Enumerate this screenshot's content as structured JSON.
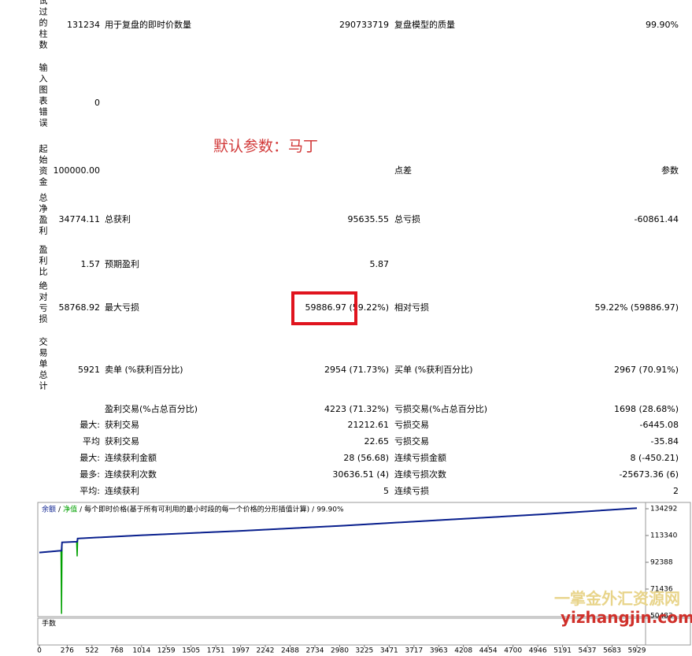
{
  "report": {
    "rows": [
      {
        "group": "测试过的柱数",
        "value": "131234",
        "label2": "用于复盘的即时价数量",
        "value2": "290733719",
        "label3": "复盘模型的质量",
        "value3": "99.90%"
      },
      {
        "group": "输入图表错误",
        "value": "0"
      },
      {
        "group": "起始资金",
        "value": "100000.00",
        "label3": "点差",
        "value3": "参数"
      },
      {
        "group": "总净盈利",
        "value": "34774.11",
        "label2": "总获利",
        "value2": "95635.55",
        "label3": "总亏损",
        "value3": "-60861.44"
      },
      {
        "group": "盈利比",
        "value": "1.57",
        "label2": "预期盈利",
        "value2": "5.87"
      },
      {
        "group": "绝对亏损",
        "value": "58768.92",
        "label2": "最大亏损",
        "value2": "59886.97 (59.22%)",
        "label3": "相对亏损",
        "value3": "59.22% (59886.97)"
      },
      {
        "group": "交易单总计",
        "value": "5921",
        "label2": "卖单 (%获利百分比)",
        "value2": "2954 (71.73%)",
        "label3": "买单 (%获利百分比)",
        "value3": "2967 (70.91%)"
      },
      {
        "label2": "盈利交易(%占总百分比)",
        "value2": "4223 (71.32%)",
        "label3": "亏损交易(%占总百分比)",
        "value3": "1698 (28.68%)"
      },
      {
        "value": "最大:",
        "label2": "获利交易",
        "value2": "21212.61",
        "label3": "亏损交易",
        "value3": "-6445.08"
      },
      {
        "value": "平均",
        "label2": "获利交易",
        "value2": "22.65",
        "label3": "亏损交易",
        "value3": "-35.84"
      },
      {
        "value": "最大:",
        "label2": "连续获利金额",
        "value2": "28 (56.68)",
        "label3": "连续亏损金额",
        "value3": "8 (-450.21)"
      },
      {
        "value": "最多:",
        "label2": "连续获利次数",
        "value2": "30636.51 (4)",
        "label3": "连续亏损次数",
        "value3": "-25673.36 (6)"
      },
      {
        "value": "平均:",
        "label2": "连续获利",
        "value2": "5",
        "label3": "连续亏损",
        "value3": "2"
      }
    ],
    "annotation": "默认参数：马丁"
  },
  "chart_data": {
    "type": "line",
    "separator": "/",
    "subtitle": "每个即时价格(基于所有可利用的最小时段的每一个价格的分形插值计算)",
    "quality": "99.90%",
    "lower_panel_label": "手数",
    "x": [
      0,
      215,
      220,
      225,
      370,
      375,
      380,
      1000,
      2000,
      3000,
      4000,
      5000,
      5929
    ],
    "series": [
      {
        "name": "余额",
        "color": "#0a1f8f",
        "values": [
          100000,
          101500,
          101500,
          108000,
          108500,
          108500,
          111000,
          113500,
          117000,
          121000,
          125500,
          130000,
          134774
        ]
      },
      {
        "name": "净值",
        "color": "#00a000",
        "values": [
          100000,
          101500,
          52000,
          108000,
          108500,
          97000,
          111000,
          113500,
          117000,
          121000,
          125500,
          130000,
          134774
        ]
      }
    ],
    "xlim": [
      0,
      6015
    ],
    "ylim": [
      50483,
      138000
    ],
    "xticks": [
      0,
      276,
      522,
      768,
      1014,
      1259,
      1505,
      1751,
      1997,
      2242,
      2488,
      2734,
      2980,
      3225,
      3471,
      3717,
      3963,
      4208,
      4454,
      4700,
      4946,
      5191,
      5437,
      5683,
      5929
    ],
    "yticks": [
      134292,
      113340,
      92388,
      71436,
      50483
    ]
  },
  "watermark": [
    "一掌金外汇资源网",
    "yizhangjin.com"
  ]
}
